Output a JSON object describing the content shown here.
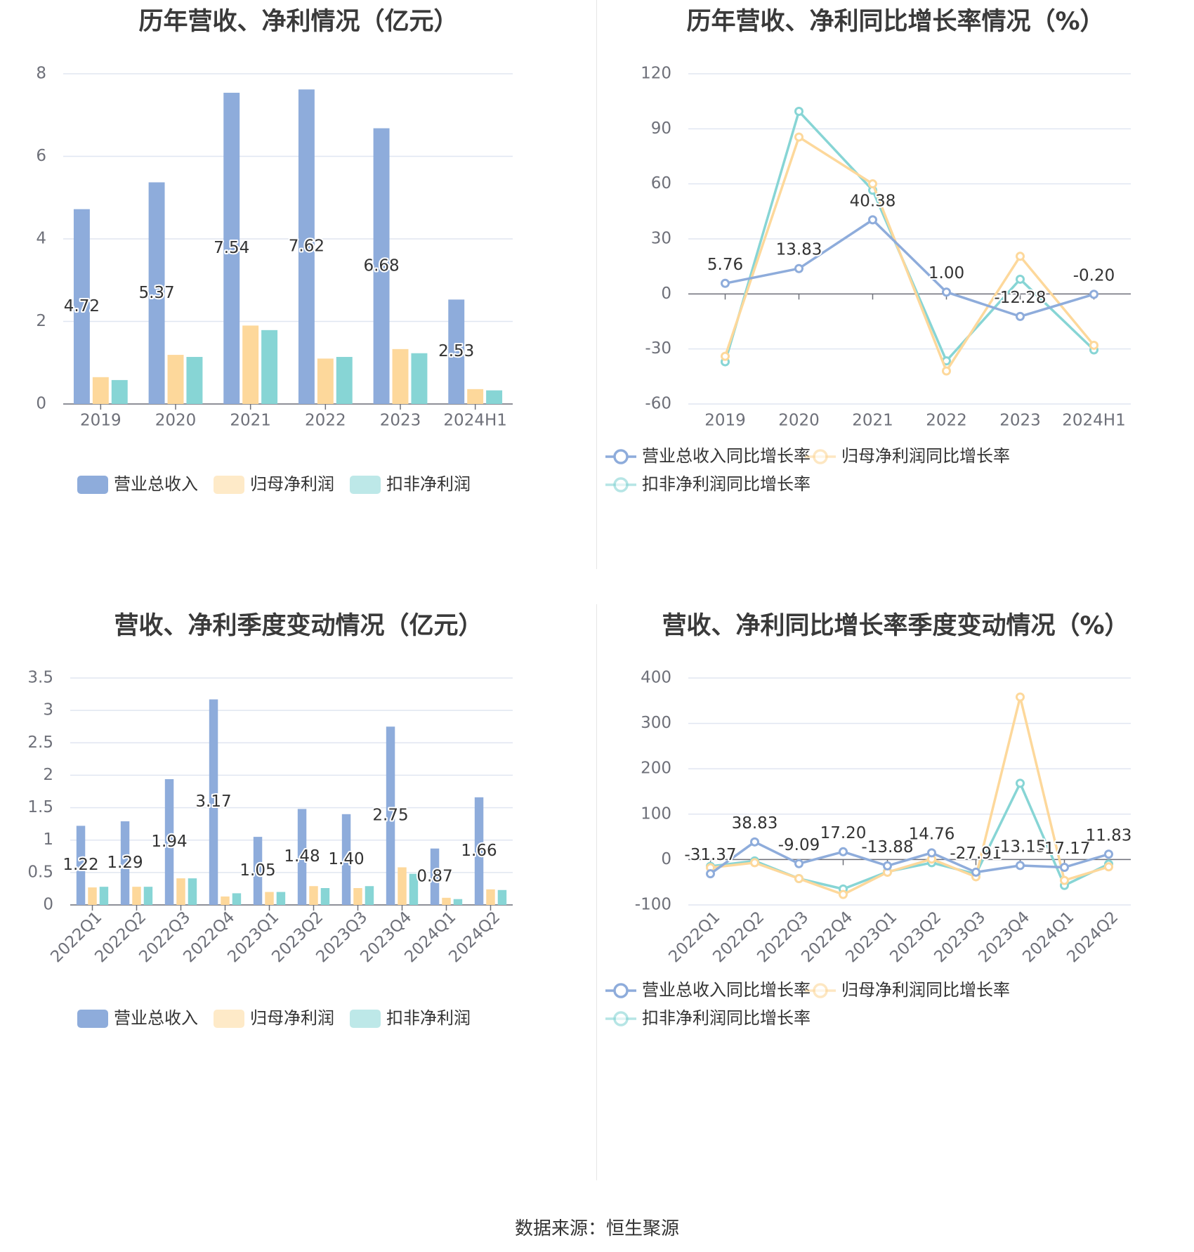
{
  "source": "数据来源：恒生聚源",
  "colors": {
    "revenue": "#8eacdb",
    "parent_profit": "#fdd89b",
    "deducted_profit": "#87d5d5"
  },
  "chart_data": [
    {
      "type": "bar",
      "title": "历年营收、净利情况（亿元）",
      "categories": [
        "2019",
        "2020",
        "2021",
        "2022",
        "2023",
        "2024H1"
      ],
      "ylim": [
        0,
        8
      ],
      "yticks": [
        0,
        2,
        4,
        6,
        8
      ],
      "grid": true,
      "legend_position": "bottom",
      "series": [
        {
          "name": "营业总收入",
          "values": [
            4.72,
            5.37,
            7.54,
            7.62,
            6.68,
            2.53
          ],
          "labels": [
            "4.72",
            "5.37",
            "7.54",
            "7.62",
            "6.68",
            "2.53"
          ]
        },
        {
          "name": "归母净利润",
          "values": [
            0.65,
            1.19,
            1.9,
            1.1,
            1.33,
            0.36
          ]
        },
        {
          "name": "扣非净利润",
          "values": [
            0.58,
            1.14,
            1.79,
            1.14,
            1.23,
            0.33
          ]
        }
      ]
    },
    {
      "type": "line",
      "title": "历年营收、净利同比增长率情况（%）",
      "categories": [
        "2019",
        "2020",
        "2021",
        "2022",
        "2023",
        "2024H1"
      ],
      "ylim": [
        -60,
        120
      ],
      "yticks": [
        -60,
        -30,
        0,
        30,
        60,
        90,
        120
      ],
      "grid": true,
      "legend_position": "bottom",
      "series": [
        {
          "name": "营业总收入同比增长率",
          "values": [
            5.76,
            13.83,
            40.38,
            1.0,
            -12.28,
            -0.2
          ],
          "labels": [
            "5.76",
            "13.83",
            "40.38",
            "1.00",
            "-12.28",
            "-0.20"
          ]
        },
        {
          "name": "归母净利润同比增长率",
          "values": [
            -34,
            85.5,
            60,
            -42,
            20.5,
            -28
          ]
        },
        {
          "name": "扣非净利润同比增长率",
          "values": [
            -37,
            99.5,
            56.5,
            -36.5,
            8,
            -30.5
          ]
        }
      ]
    },
    {
      "type": "bar",
      "title": "营收、净利季度变动情况（亿元）",
      "categories": [
        "2022Q1",
        "2022Q2",
        "2022Q3",
        "2022Q4",
        "2023Q1",
        "2023Q2",
        "2023Q3",
        "2023Q4",
        "2024Q1",
        "2024Q2"
      ],
      "ylim": [
        0,
        3.5
      ],
      "yticks": [
        0,
        0.5,
        1,
        1.5,
        2,
        2.5,
        3,
        3.5
      ],
      "yticklabels": [
        "0",
        "0.5",
        "1",
        "1.5",
        "2",
        "2.5",
        "3",
        "3.5"
      ],
      "grid": true,
      "legend_position": "bottom",
      "series": [
        {
          "name": "营业总收入",
          "values": [
            1.22,
            1.29,
            1.94,
            3.17,
            1.05,
            1.48,
            1.4,
            2.75,
            0.87,
            1.66
          ],
          "labels": [
            "1.22",
            "1.29",
            "1.94",
            "3.17",
            "1.05",
            "1.48",
            "1.40",
            "2.75",
            "0.87",
            "1.66"
          ]
        },
        {
          "name": "归母净利润",
          "values": [
            0.27,
            0.28,
            0.41,
            0.13,
            0.2,
            0.29,
            0.26,
            0.58,
            0.11,
            0.24
          ]
        },
        {
          "name": "扣非净利润",
          "values": [
            0.28,
            0.28,
            0.41,
            0.18,
            0.2,
            0.26,
            0.29,
            0.48,
            0.09,
            0.23
          ]
        }
      ]
    },
    {
      "type": "line",
      "title": "营收、净利同比增长率季度变动情况（%）",
      "categories": [
        "2022Q1",
        "2022Q2",
        "2022Q3",
        "2022Q4",
        "2023Q1",
        "2023Q2",
        "2023Q3",
        "2023Q4",
        "2024Q1",
        "2024Q2"
      ],
      "ylim": [
        -100,
        400
      ],
      "yticks": [
        -100,
        0,
        100,
        200,
        300,
        400
      ],
      "grid": true,
      "legend_position": "bottom",
      "series": [
        {
          "name": "营业总收入同比增长率",
          "values": [
            -31.37,
            38.83,
            -9.09,
            17.2,
            -13.88,
            14.76,
            -27.91,
            -13.15,
            -17.17,
            11.83
          ],
          "labels": [
            "-31.37",
            "38.83",
            "-9.09",
            "17.20",
            "-13.88",
            "14.76",
            "-27.91",
            "-13.15",
            "-17.17",
            "11.83"
          ]
        },
        {
          "name": "归母净利润同比增长率",
          "values": [
            -18,
            -7,
            -42,
            -77,
            -28,
            1,
            -38,
            358,
            -46,
            -16
          ]
        },
        {
          "name": "扣非净利润同比增长率",
          "values": [
            -15,
            -3,
            -42,
            -65,
            -27,
            -7,
            -32,
            168,
            -57,
            -10
          ]
        }
      ]
    }
  ]
}
